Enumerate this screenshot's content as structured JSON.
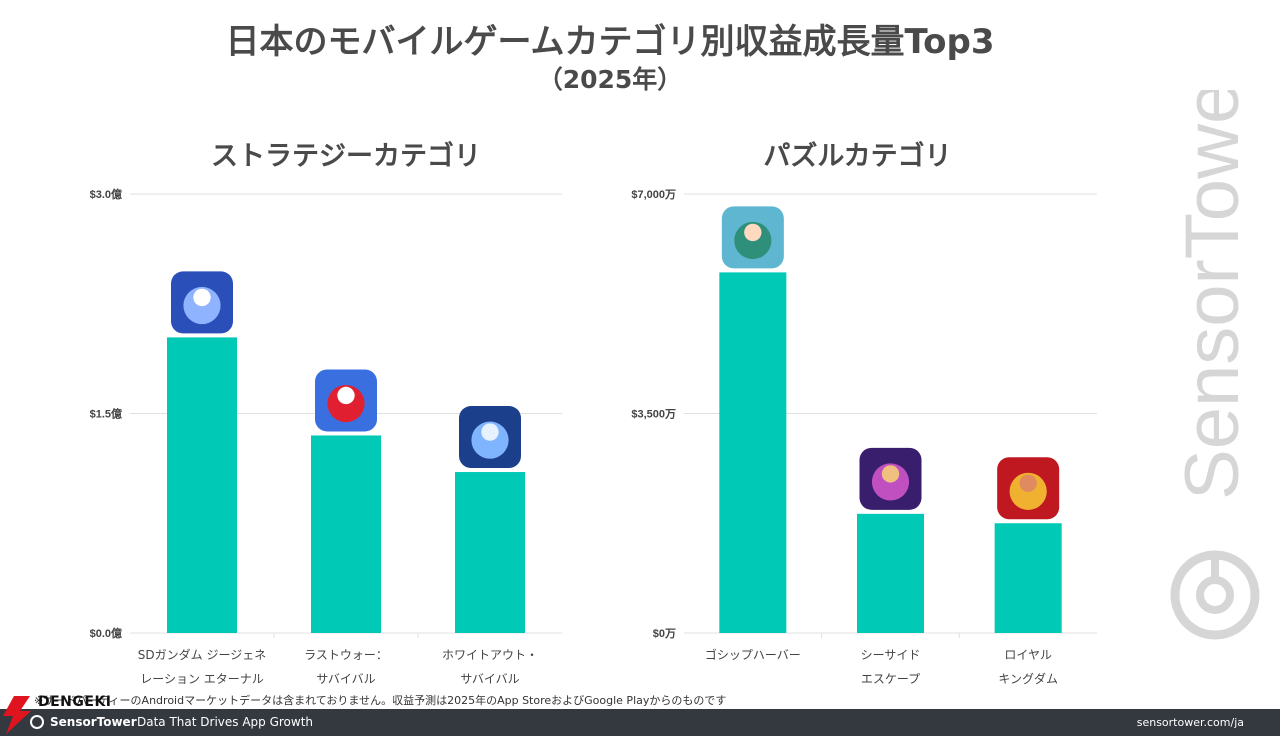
{
  "header": {
    "title": "日本のモバイルゲームカテゴリ別収益成長量Top3",
    "subtitle": "（2025年）"
  },
  "colors": {
    "bar": "#00c9b5",
    "grid": "#e0e0e0",
    "text": "#444444",
    "footer_bg": "#34383f"
  },
  "chart_data": [
    {
      "type": "bar",
      "title": "ストラテジーカテゴリ",
      "unit": "億",
      "ylim": [
        0,
        3.0
      ],
      "yticks": [
        "$0.0億",
        "$1.5億",
        "$3.0億"
      ],
      "ytick_values": [
        0,
        1.5,
        3.0
      ],
      "categories": [
        [
          "SDガンダム ジージェネ",
          "レーション エターナル"
        ],
        [
          "ラストウォー：",
          "サバイバル"
        ],
        [
          "ホワイトアウト・",
          "サバイバル"
        ]
      ],
      "values": [
        2.02,
        1.35,
        1.1
      ],
      "icons": [
        "gundam-app-icon",
        "last-war-app-icon",
        "whiteout-survival-app-icon"
      ],
      "grid": true
    },
    {
      "type": "bar",
      "title": "パズルカテゴリ",
      "unit": "万",
      "ylim": [
        0,
        7000
      ],
      "yticks": [
        "$0万",
        "$3,500万",
        "$7,000万"
      ],
      "ytick_values": [
        0,
        3500,
        7000
      ],
      "categories": [
        [
          "ゴシップハーバー"
        ],
        [
          "シーサイド",
          "エスケープ"
        ],
        [
          "ロイヤル",
          "キングダム"
        ]
      ],
      "values": [
        5750,
        1900,
        1750
      ],
      "icons": [
        "gossip-harbor-app-icon",
        "seaside-escape-app-icon",
        "royal-kingdom-app-icon"
      ],
      "grid": true
    }
  ],
  "watermark": "SensorTower",
  "footnote": "※サードパーティーのAndroidマーケットデータは含まれておりません。収益予測は2025年のApp StoreおよびGoogle Playからのものです",
  "footer": {
    "brand": "SensorTower",
    "tagline": "Data That Drives App Growth",
    "url": "sensortower.com/ja"
  },
  "overlay_logo": {
    "text": "DENGEKI"
  }
}
